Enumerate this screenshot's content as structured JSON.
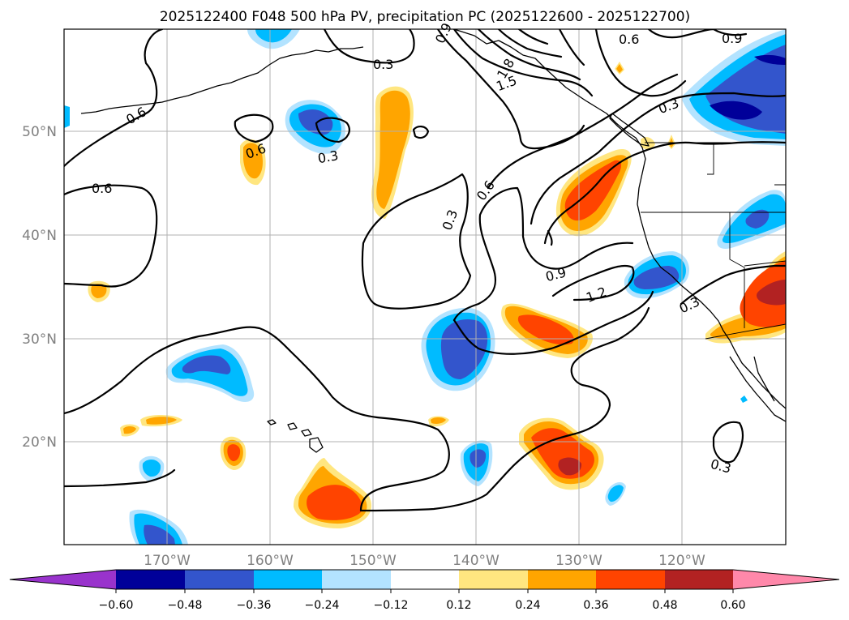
{
  "title": "2025122400 F048 500 hPa PV, precipitation PC (2025122600 - 2025122700)",
  "colors": {
    "neg60": "#9933cc",
    "neg48": "#000099",
    "neg36": "#3355cc",
    "neg24": "#00bbff",
    "neg12": "#b3e3ff",
    "zero": "#ffffff",
    "pos12": "#ffe680",
    "pos24": "#ffa500",
    "pos36": "#ff4400",
    "pos48": "#b22222",
    "pos60": "#ff88aa"
  },
  "axes": {
    "lat_ticks": [
      "50°N",
      "40°N",
      "30°N",
      "20°N"
    ],
    "lon_ticks": [
      "170°W",
      "160°W",
      "150°W",
      "140°W",
      "130°W",
      "120°W"
    ]
  },
  "colorbar": {
    "ticks": [
      "−0.60",
      "−0.48",
      "−0.36",
      "−0.24",
      "−0.12",
      "0.12",
      "0.24",
      "0.36",
      "0.48",
      "0.60"
    ]
  },
  "contour_labels": [
    "0.3",
    "0.6",
    "0.6",
    "0.6",
    "0.3",
    "0.3",
    "0.6",
    "0.9",
    "1.2",
    "0.3",
    "0.3",
    "0.6",
    "0.9",
    "0.3",
    "1.8",
    "1.5",
    "0.9"
  ]
}
